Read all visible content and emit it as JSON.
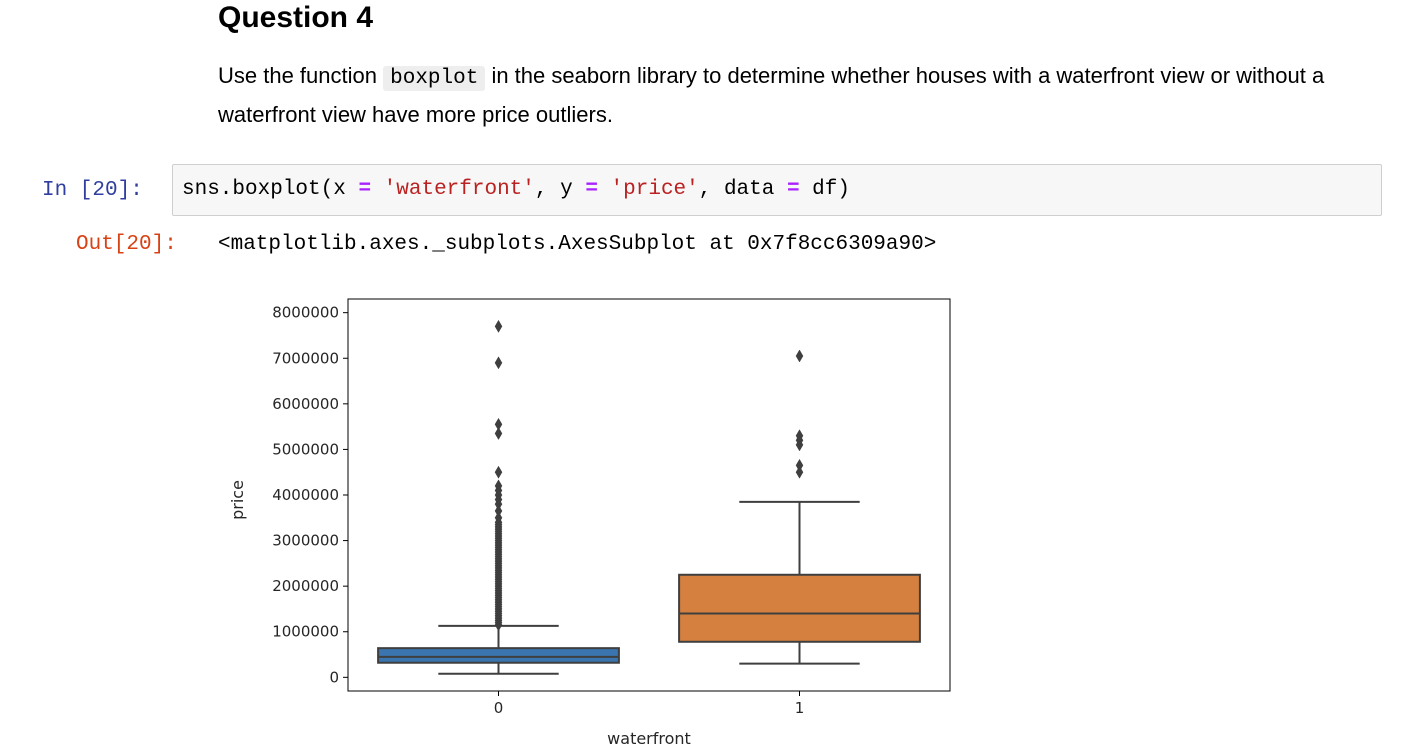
{
  "markdown": {
    "heading": "Question 4",
    "para_before": "Use the function ",
    "code_word": "boxplot",
    "para_after": " in the seaborn library to determine whether houses with a waterfront view or without a waterfront view have more price outliers."
  },
  "input_cell": {
    "prompt": "In [20]:",
    "code": {
      "t1": "sns.boxplot(x ",
      "eq1": "=",
      "t2": " ",
      "s1": "'waterfront'",
      "t3": ", y ",
      "eq2": "=",
      "t4": " ",
      "s2": "'price'",
      "t5": ", data ",
      "eq3": "=",
      "t6": " df)"
    }
  },
  "output_cell": {
    "prompt": "Out[20]:",
    "text": "<matplotlib.axes._subplots.AxesSubplot at 0x7f8cc6309a90>"
  },
  "chart_data": {
    "type": "boxplot",
    "title": "",
    "xlabel": "waterfront",
    "ylabel": "price",
    "categories": [
      "0",
      "1"
    ],
    "ylim": [
      -300000,
      8300000
    ],
    "yticks": [
      "0",
      "1000000",
      "2000000",
      "3000000",
      "4000000",
      "5000000",
      "6000000",
      "7000000",
      "8000000"
    ],
    "grid": false,
    "boxes": [
      {
        "category": "0",
        "color": "#3b75af",
        "whisker_low": 78000,
        "q1": 320000,
        "median": 450000,
        "q3": 640000,
        "whisker_high": 1130000,
        "outliers": [
          1150000,
          1200000,
          1250000,
          1300000,
          1350000,
          1400000,
          1450000,
          1500000,
          1550000,
          1600000,
          1650000,
          1700000,
          1750000,
          1800000,
          1850000,
          1900000,
          1950000,
          2000000,
          2050000,
          2100000,
          2150000,
          2200000,
          2250000,
          2300000,
          2350000,
          2400000,
          2450000,
          2500000,
          2550000,
          2600000,
          2650000,
          2700000,
          2750000,
          2800000,
          2850000,
          2900000,
          2950000,
          3000000,
          3050000,
          3100000,
          3150000,
          3200000,
          3250000,
          3300000,
          3350000,
          3400000,
          3500000,
          3650000,
          3800000,
          3900000,
          4000000,
          4100000,
          4200000,
          4500000,
          5350000,
          5550000,
          6900000,
          7700000
        ]
      },
      {
        "category": "1",
        "color": "#d5803e",
        "whisker_low": 300000,
        "q1": 780000,
        "median": 1400000,
        "q3": 2250000,
        "whisker_high": 3850000,
        "outliers": [
          4500000,
          4650000,
          5100000,
          5200000,
          5300000,
          7050000
        ]
      }
    ]
  }
}
